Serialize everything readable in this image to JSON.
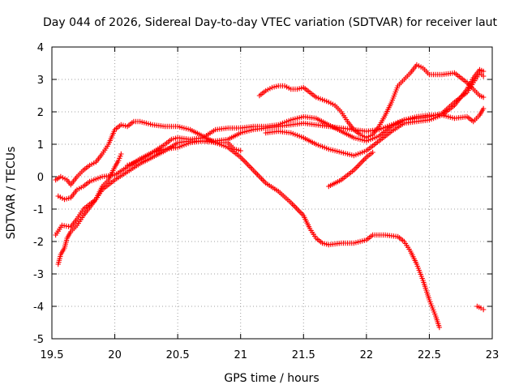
{
  "chart_data": {
    "type": "scatter",
    "title": "Day 044 of 2026, Sidereal Day-to-day VTEC variation (SDTVAR) for receiver laut",
    "xlabel": "GPS time / hours",
    "ylabel": "SDTVAR / TECUs",
    "xlim": [
      19.5,
      23
    ],
    "ylim": [
      -5,
      4
    ],
    "xticks": [
      "19.5",
      "20",
      "20.5",
      "21",
      "21.5",
      "22",
      "22.5",
      "23"
    ],
    "yticks": [
      "-5",
      "-4",
      "-3",
      "-2",
      "-1",
      "0",
      "1",
      "2",
      "3",
      "4"
    ],
    "grid": true,
    "marker": "+",
    "color": "#ff0000",
    "series": [
      {
        "name": "s1",
        "points": [
          [
            19.55,
            -0.6
          ],
          [
            19.6,
            -0.7
          ],
          [
            19.65,
            -0.65
          ],
          [
            19.7,
            -0.4
          ],
          [
            19.75,
            -0.3
          ],
          [
            19.8,
            -0.15
          ],
          [
            19.9,
            0.0
          ],
          [
            20.0,
            0.05
          ],
          [
            20.1,
            0.3
          ],
          [
            20.2,
            0.55
          ],
          [
            20.3,
            0.75
          ],
          [
            20.4,
            0.85
          ],
          [
            20.5,
            0.9
          ],
          [
            20.6,
            1.05
          ],
          [
            20.7,
            1.1
          ],
          [
            20.8,
            1.1
          ],
          [
            20.9,
            1.15
          ],
          [
            21.0,
            1.35
          ],
          [
            21.1,
            1.45
          ],
          [
            21.2,
            1.5
          ],
          [
            21.3,
            1.55
          ],
          [
            21.4,
            1.6
          ],
          [
            21.5,
            1.65
          ],
          [
            21.6,
            1.6
          ],
          [
            21.7,
            1.55
          ],
          [
            21.8,
            1.5
          ],
          [
            21.9,
            1.45
          ],
          [
            22.0,
            1.4
          ],
          [
            22.1,
            1.45
          ],
          [
            22.2,
            1.6
          ],
          [
            22.3,
            1.75
          ],
          [
            22.4,
            1.85
          ],
          [
            22.5,
            1.9
          ],
          [
            22.6,
            1.9
          ],
          [
            22.7,
            1.8
          ],
          [
            22.8,
            1.85
          ],
          [
            22.85,
            1.7
          ],
          [
            22.9,
            1.9
          ],
          [
            22.93,
            2.1
          ]
        ]
      },
      {
        "name": "s2",
        "points": [
          [
            19.53,
            -1.8
          ],
          [
            19.58,
            -1.5
          ],
          [
            19.65,
            -1.55
          ],
          [
            19.7,
            -1.3
          ],
          [
            19.75,
            -1.0
          ],
          [
            19.8,
            -0.85
          ],
          [
            19.85,
            -0.7
          ],
          [
            19.9,
            -0.4
          ],
          [
            20.0,
            -0.1
          ],
          [
            20.1,
            0.15
          ],
          [
            20.2,
            0.4
          ],
          [
            20.3,
            0.6
          ],
          [
            20.4,
            0.8
          ],
          [
            20.5,
            1.05
          ],
          [
            20.6,
            1.1
          ],
          [
            20.7,
            1.1
          ],
          [
            20.8,
            1.05
          ],
          [
            20.9,
            0.9
          ],
          [
            21.0,
            0.6
          ],
          [
            21.1,
            0.2
          ],
          [
            21.2,
            -0.2
          ],
          [
            21.3,
            -0.45
          ],
          [
            21.4,
            -0.8
          ],
          [
            21.5,
            -1.2
          ],
          [
            21.55,
            -1.6
          ],
          [
            21.6,
            -1.9
          ],
          [
            21.65,
            -2.05
          ],
          [
            21.7,
            -2.1
          ],
          [
            21.8,
            -2.05
          ],
          [
            21.9,
            -2.05
          ],
          [
            22.0,
            -1.95
          ],
          [
            22.05,
            -1.8
          ],
          [
            22.15,
            -1.8
          ],
          [
            22.25,
            -1.85
          ],
          [
            22.3,
            -2.0
          ],
          [
            22.35,
            -2.3
          ],
          [
            22.4,
            -2.7
          ],
          [
            22.45,
            -3.2
          ],
          [
            22.5,
            -3.8
          ],
          [
            22.55,
            -4.3
          ],
          [
            22.58,
            -4.65
          ]
        ]
      },
      {
        "name": "s3",
        "points": [
          [
            19.53,
            -0.1
          ],
          [
            19.57,
            0.0
          ],
          [
            19.62,
            -0.1
          ],
          [
            19.65,
            -0.25
          ],
          [
            19.7,
            0.0
          ],
          [
            19.75,
            0.2
          ],
          [
            19.8,
            0.35
          ],
          [
            19.85,
            0.45
          ],
          [
            19.9,
            0.7
          ],
          [
            19.95,
            1.0
          ],
          [
            20.0,
            1.45
          ],
          [
            20.05,
            1.6
          ],
          [
            20.1,
            1.55
          ],
          [
            20.15,
            1.7
          ],
          [
            20.2,
            1.7
          ],
          [
            20.3,
            1.6
          ],
          [
            20.4,
            1.55
          ],
          [
            20.5,
            1.55
          ],
          [
            20.6,
            1.45
          ],
          [
            20.7,
            1.25
          ],
          [
            20.8,
            1.05
          ],
          [
            20.9,
            1.05
          ],
          [
            20.95,
            0.85
          ],
          [
            21.0,
            0.8
          ]
        ]
      },
      {
        "name": "s4",
        "points": [
          [
            19.55,
            -2.7
          ],
          [
            19.57,
            -2.4
          ],
          [
            19.6,
            -2.2
          ],
          [
            19.62,
            -1.9
          ],
          [
            19.65,
            -1.7
          ],
          [
            19.7,
            -1.5
          ],
          [
            19.75,
            -1.2
          ],
          [
            19.8,
            -0.95
          ],
          [
            19.85,
            -0.7
          ],
          [
            19.9,
            -0.3
          ],
          [
            19.95,
            -0.1
          ],
          [
            20.0,
            0.3
          ],
          [
            20.03,
            0.5
          ],
          [
            20.05,
            0.7
          ]
        ]
      },
      {
        "name": "s5",
        "points": [
          [
            20.1,
            0.35
          ],
          [
            20.2,
            0.5
          ],
          [
            20.3,
            0.75
          ],
          [
            20.4,
            1.0
          ],
          [
            20.45,
            1.15
          ],
          [
            20.5,
            1.2
          ],
          [
            20.6,
            1.15
          ],
          [
            20.7,
            1.2
          ],
          [
            20.8,
            1.45
          ],
          [
            20.9,
            1.5
          ],
          [
            21.0,
            1.5
          ],
          [
            21.1,
            1.55
          ],
          [
            21.2,
            1.55
          ],
          [
            21.3,
            1.6
          ],
          [
            21.4,
            1.75
          ],
          [
            21.5,
            1.85
          ],
          [
            21.6,
            1.8
          ],
          [
            21.7,
            1.6
          ],
          [
            21.8,
            1.4
          ],
          [
            21.9,
            1.2
          ],
          [
            22.0,
            1.1
          ],
          [
            22.1,
            1.25
          ],
          [
            22.2,
            1.55
          ],
          [
            22.3,
            1.75
          ],
          [
            22.4,
            1.8
          ],
          [
            22.5,
            1.85
          ],
          [
            22.6,
            1.95
          ],
          [
            22.7,
            2.3
          ],
          [
            22.8,
            2.6
          ],
          [
            22.85,
            2.9
          ],
          [
            22.9,
            3.2
          ],
          [
            22.93,
            3.1
          ]
        ]
      },
      {
        "name": "s6",
        "points": [
          [
            21.15,
            2.5
          ],
          [
            21.2,
            2.65
          ],
          [
            21.25,
            2.75
          ],
          [
            21.3,
            2.8
          ],
          [
            21.35,
            2.8
          ],
          [
            21.4,
            2.7
          ],
          [
            21.45,
            2.7
          ],
          [
            21.5,
            2.75
          ],
          [
            21.55,
            2.6
          ],
          [
            21.6,
            2.45
          ],
          [
            21.7,
            2.3
          ],
          [
            21.75,
            2.2
          ],
          [
            21.8,
            2.0
          ],
          [
            21.85,
            1.7
          ],
          [
            21.9,
            1.45
          ],
          [
            21.95,
            1.3
          ],
          [
            22.0,
            1.2
          ],
          [
            22.05,
            1.3
          ],
          [
            22.1,
            1.55
          ],
          [
            22.15,
            1.9
          ],
          [
            22.2,
            2.3
          ],
          [
            22.25,
            2.8
          ],
          [
            22.3,
            3.0
          ],
          [
            22.35,
            3.2
          ],
          [
            22.4,
            3.45
          ],
          [
            22.45,
            3.35
          ],
          [
            22.5,
            3.15
          ],
          [
            22.6,
            3.15
          ],
          [
            22.7,
            3.2
          ],
          [
            22.8,
            2.9
          ],
          [
            22.85,
            2.7
          ],
          [
            22.9,
            2.5
          ],
          [
            22.93,
            2.45
          ]
        ]
      },
      {
        "name": "s7",
        "points": [
          [
            21.2,
            1.35
          ],
          [
            21.3,
            1.4
          ],
          [
            21.4,
            1.35
          ],
          [
            21.5,
            1.2
          ],
          [
            21.6,
            1.0
          ],
          [
            21.7,
            0.85
          ],
          [
            21.8,
            0.75
          ],
          [
            21.9,
            0.65
          ],
          [
            22.0,
            0.8
          ],
          [
            22.1,
            1.1
          ],
          [
            22.2,
            1.4
          ],
          [
            22.3,
            1.65
          ],
          [
            22.4,
            1.7
          ],
          [
            22.5,
            1.75
          ],
          [
            22.6,
            1.9
          ],
          [
            22.7,
            2.2
          ],
          [
            22.8,
            2.7
          ],
          [
            22.85,
            3.05
          ],
          [
            22.9,
            3.3
          ],
          [
            22.93,
            3.25
          ]
        ]
      },
      {
        "name": "s8",
        "points": [
          [
            21.7,
            -0.3
          ],
          [
            21.8,
            -0.1
          ],
          [
            21.9,
            0.2
          ],
          [
            22.0,
            0.6
          ],
          [
            22.05,
            0.75
          ]
        ]
      },
      {
        "name": "s9",
        "points": [
          [
            22.88,
            -4.0
          ],
          [
            22.91,
            -4.05
          ],
          [
            22.93,
            -4.1
          ]
        ]
      }
    ]
  }
}
